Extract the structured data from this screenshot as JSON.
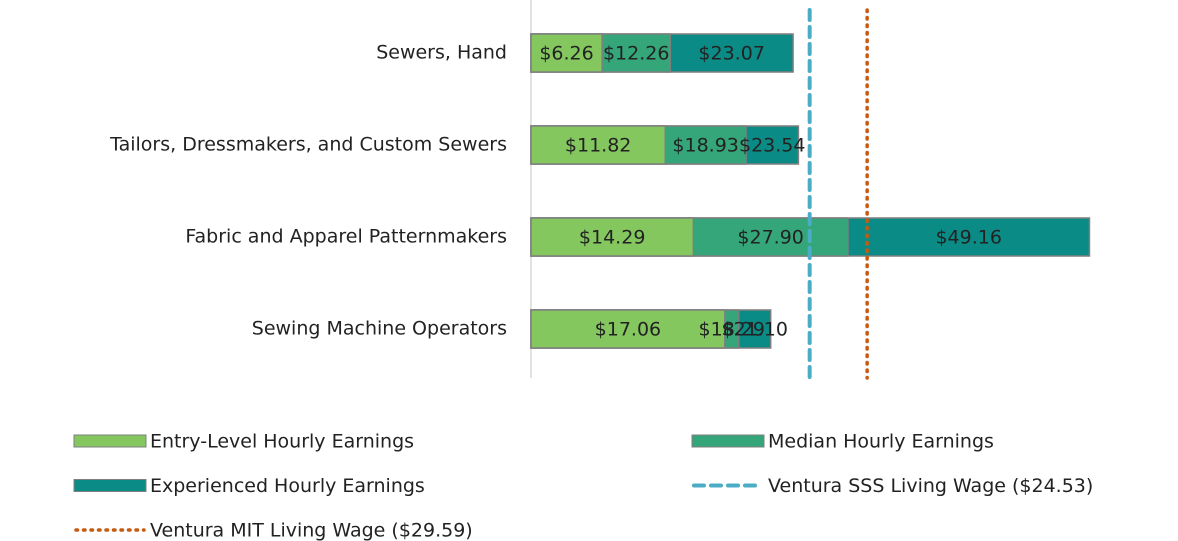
{
  "chart_data": {
    "type": "bar",
    "orientation": "horizontal",
    "overlap": true,
    "categories": [
      "Sewers, Hand",
      "Tailors, Dressmakers, and Custom Sewers",
      "Fabric and Apparel Patternmakers",
      "Sewing Machine Operators"
    ],
    "series": [
      {
        "name": "Entry-Level Hourly Earnings",
        "color": "#84c75f",
        "values": [
          6.26,
          11.82,
          14.29,
          17.06
        ],
        "value_labels": [
          "$6.26",
          "$11.82",
          "$14.29",
          "$17.06"
        ]
      },
      {
        "name": "Median Hourly Earnings",
        "color": "#34a67a",
        "values": [
          12.26,
          18.93,
          27.9,
          18.29
        ],
        "value_labels": [
          "$12.26",
          "$18.93",
          "$27.90",
          "$18.29"
        ]
      },
      {
        "name": "Experienced Hourly Earnings",
        "color": "#0b8b85",
        "values": [
          23.07,
          23.54,
          49.16,
          21.1
        ],
        "value_labels": [
          "$23.07",
          "$23.54",
          "$49.16",
          "$21.10"
        ]
      }
    ],
    "reference_lines": [
      {
        "name": "Ventura SSS Living Wage ($24.53)",
        "value": 24.53,
        "color": "#4bacc6",
        "style": "dashed"
      },
      {
        "name": "Ventura MIT Living Wage ($29.59)",
        "value": 29.59,
        "color": "#c55a11",
        "style": "dotted"
      }
    ],
    "xlim": [
      0,
      50
    ]
  }
}
